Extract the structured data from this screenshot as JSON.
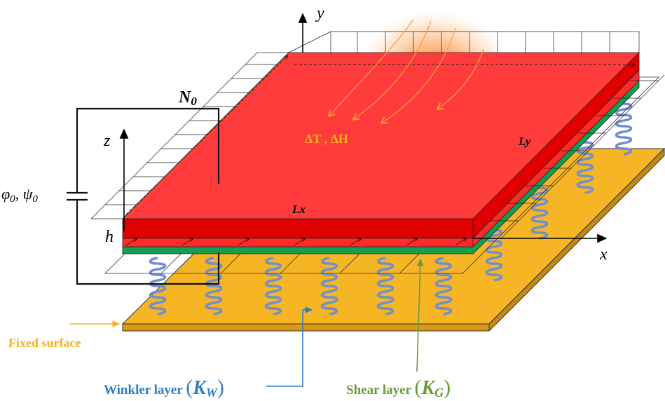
{
  "labels": {
    "y_axis": "y",
    "z_axis": "z",
    "x_axis": "x",
    "inplane_load": "N",
    "inplane_load_sub": "0",
    "potentials_phi": "φ",
    "potentials_phi_sub": "0",
    "potentials_sep": ", ",
    "potentials_psi": "ψ",
    "potentials_psi_sub": "0",
    "thickness": "h",
    "length_x": "Lx",
    "length_y": "Ly",
    "thermal_hygro": "ΔT , ΔH",
    "fixed_surface": "Fixed surface",
    "winkler_text": "Winkler layer ",
    "winkler_k": "K",
    "winkler_sub": "W",
    "shear_text": "Shear layer ",
    "shear_k": "K",
    "shear_sub": "G",
    "paren_open": "(",
    "paren_close": ")"
  },
  "colors": {
    "plate_top": "#ff3b3b",
    "plate_side": "#e00000",
    "shear_layer": "#10a050",
    "foundation": "#f5b524",
    "spring": "#6f8fcf",
    "label_orange": "#f5b41e",
    "winkler_blue": "#2f7fc0",
    "shear_green": "#6a9a3a",
    "heat": "#ff8a20"
  },
  "icons": {
    "heat_source": "heat-glow-icon",
    "spring": "spring-icon",
    "dc_source": "dc-source-icon"
  }
}
